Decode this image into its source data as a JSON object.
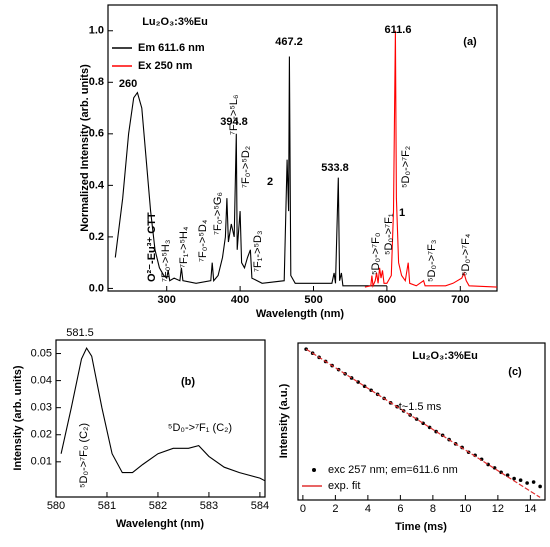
{
  "chart_data": [
    {
      "type": "line",
      "title": "Lu₂O₃:3%Eu",
      "x_label": "Wavelength (nm)",
      "y_label": "Normalized Intensity (arb. units)",
      "xlim": [
        220,
        750
      ],
      "ylim": [
        -0.01,
        1.1
      ],
      "xticks": [
        300,
        400,
        500,
        600,
        700
      ],
      "yticks": [
        {
          "value": 0,
          "label": "0.0"
        },
        0.2,
        0.4,
        0.6,
        0.8,
        {
          "value": 1,
          "label": "1.0"
        }
      ],
      "series": [
        {
          "name": "Em 611.6 nm",
          "color": "#000000",
          "x": [
            230,
            240,
            248,
            255,
            260,
            266,
            272,
            278,
            284,
            290,
            296,
            300,
            302,
            304,
            310,
            318,
            320,
            322,
            340,
            360,
            362,
            364,
            370,
            376,
            380,
            382,
            384,
            388,
            392,
            394.8,
            396,
            400,
            402,
            406,
            410,
            414,
            416,
            430,
            460,
            464,
            466,
            467.2,
            469,
            475,
            525,
            528,
            530,
            533.8,
            535.5,
            538,
            540,
            580,
            600
          ],
          "values": [
            0.12,
            0.35,
            0.6,
            0.74,
            0.76,
            0.7,
            0.5,
            0.3,
            0.15,
            0.08,
            0.05,
            0.04,
            0.07,
            0.03,
            0.04,
            0.03,
            0.08,
            0.03,
            0.02,
            0.03,
            0.1,
            0.03,
            0.05,
            0.12,
            0.2,
            0.35,
            0.18,
            0.25,
            0.2,
            0.6,
            0.15,
            0.3,
            0.1,
            0.08,
            0.12,
            0.15,
            0.04,
            0.02,
            0.03,
            0.5,
            0.3,
            0.9,
            0.05,
            0.02,
            0.02,
            0.06,
            0.02,
            0.43,
            0.03,
            0.06,
            0.01,
            0.01,
            0.01
          ]
        },
        {
          "name": "Ex 250 nm",
          "color": "#ff0000",
          "x": [
            570,
            578,
            579.5,
            581,
            584,
            586,
            588,
            590,
            592,
            594,
            596,
            600,
            606,
            609,
            611.6,
            613,
            616,
            620,
            625,
            629,
            631,
            640,
            650,
            652,
            680,
            690,
            702,
            705,
            708,
            712,
            750
          ],
          "values": [
            0.005,
            0.01,
            0.05,
            0.01,
            0.03,
            0.06,
            0.02,
            0.08,
            0.04,
            0.07,
            0.02,
            0.02,
            0.05,
            0.3,
            1.0,
            0.35,
            0.1,
            0.05,
            0.03,
            0.1,
            0.02,
            0.01,
            0.03,
            0.01,
            0.01,
            0.02,
            0.04,
            0.06,
            0.03,
            0.01,
            0.005
          ]
        }
      ],
      "annotations": [
        {
          "text": "260"
        },
        {
          "text": "394.8"
        },
        {
          "text": "467.2"
        },
        {
          "text": "533.8"
        },
        {
          "text": "611.6"
        },
        {
          "text": "(a)"
        },
        {
          "text": "1"
        },
        {
          "text": "2"
        },
        {
          "text": "O²⁻-Eu³⁺ CTT"
        },
        {
          "text": "⁷F₀->⁵H₃"
        },
        {
          "text": "⁷F₁->⁵H₄"
        },
        {
          "text": "⁷F₀->⁵D₄"
        },
        {
          "text": "⁷F₀->⁵G₆"
        },
        {
          "text": "⁷F₀->⁵L₆"
        },
        {
          "text": "⁷F₀->⁵D₂"
        },
        {
          "text": "⁷F₁->⁵D₃"
        },
        {
          "text": "⁵D₀->⁷F₀"
        },
        {
          "text": "⁵D₀->⁷F₁"
        },
        {
          "text": "⁵D₀->⁷F₂"
        },
        {
          "text": "⁵D₀->⁷F₃"
        },
        {
          "text": "⁵D₀->⁷F₄"
        }
      ]
    },
    {
      "type": "line",
      "x_label": "Wavelenght (nm)",
      "y_label": "Intensity (arb. units)",
      "xlim": [
        580,
        584.1
      ],
      "ylim": [
        -0.003,
        0.055
      ],
      "xticks": [
        580,
        581,
        582,
        583,
        584
      ],
      "yticks": [
        0.01,
        0.02,
        0.03,
        0.04,
        0.05
      ],
      "series": [
        {
          "color": "#000000",
          "x": [
            580.1,
            580.3,
            580.5,
            580.6,
            580.7,
            580.9,
            581.1,
            581.3,
            581.5,
            581.7,
            582,
            582.3,
            582.6,
            582.8,
            583,
            583.3,
            583.6,
            584,
            584.1
          ],
          "values": [
            0.013,
            0.03,
            0.048,
            0.052,
            0.049,
            0.03,
            0.013,
            0.006,
            0.006,
            0.009,
            0.013,
            0.015,
            0.015,
            0.016,
            0.012,
            0.008,
            0.006,
            0.004,
            0.003
          ]
        }
      ],
      "annotations": [
        {
          "text": "581.5"
        },
        {
          "text": "⁵D₀->⁷F₀ (C₂)"
        },
        {
          "text": "⁵D₀->⁷F₁ (C₂)"
        },
        {
          "text": "(b)"
        }
      ]
    },
    {
      "type": "scatter",
      "title": "Lu₂O₃:3%Eu",
      "x_label": "Time (ms)",
      "y_label": "Intensity (a.u.)",
      "ylog": true,
      "xlim": [
        -0.3,
        14.9
      ],
      "ylim": [
        5e-05,
        1.3
      ],
      "xticks": [
        0,
        2,
        4,
        6,
        8,
        10,
        12,
        14
      ],
      "series": [
        {
          "name": "exc 257 nm; em=611.6 nm",
          "color": "#000000",
          "type": "scatter",
          "x": [
            0.2,
            0.6,
            1.0,
            1.4,
            1.8,
            2.2,
            2.6,
            3.0,
            3.4,
            3.8,
            4.2,
            4.6,
            5.0,
            5.4,
            5.8,
            6.2,
            6.6,
            7.0,
            7.4,
            7.8,
            8.2,
            8.6,
            9.0,
            9.4,
            9.8,
            10.2,
            10.6,
            11.0,
            11.4,
            11.8,
            12.2,
            12.6,
            13.0,
            13.4,
            13.8,
            14.2,
            14.6
          ],
          "values": [
            0.875,
            0.67,
            0.513,
            0.393,
            0.301,
            0.231,
            0.177,
            0.135,
            0.104,
            0.079,
            0.061,
            0.047,
            0.036,
            0.027,
            0.021,
            0.016,
            0.0123,
            0.0094,
            0.0072,
            0.0055,
            0.0042,
            0.0033,
            0.0025,
            0.0019,
            0.0015,
            0.0011,
            0.0009,
            0.0007,
            0.0005,
            0.0004,
            0.0003,
            0.00025,
            0.0002,
            0.00018,
            0.00015,
            0.00016,
            0.00012
          ]
        },
        {
          "name": "exp. fit",
          "color": "#e03030",
          "type": "line",
          "x": [
            0.2,
            14.6
          ],
          "values": [
            0.875,
            5.9e-05
          ]
        }
      ],
      "annotations": [
        {
          "text": "t~1.5 ms"
        },
        {
          "text": "(c)"
        }
      ]
    }
  ]
}
